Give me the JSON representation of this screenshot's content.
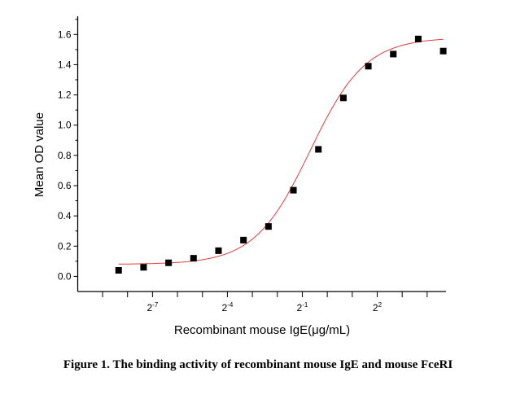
{
  "chart_data": {
    "type": "scatter",
    "xlabel": "Recombinant mouse IgE(μg/mL)",
    "ylabel": "Mean OD value",
    "x_scale": "log2",
    "xlim": [
      0.00098,
      27
    ],
    "ylim": [
      -0.1,
      1.72
    ],
    "x_ticks": [
      {
        "base": "2",
        "exp": "-7",
        "value": 0.0078125
      },
      {
        "base": "2",
        "exp": "-4",
        "value": 0.0625
      },
      {
        "base": "2",
        "exp": "-1",
        "value": 0.5
      },
      {
        "base": "2",
        "exp": "2",
        "value": 4
      }
    ],
    "y_ticks": [
      "0.0",
      "0.2",
      "0.4",
      "0.6",
      "0.8",
      "1.0",
      "1.2",
      "1.4",
      "1.6"
    ],
    "grid": false,
    "series": [
      {
        "type": "scatter",
        "marker": "square",
        "color": "#000000",
        "x": [
          0.00305,
          0.0061,
          0.0122,
          0.0244,
          0.0488,
          0.0977,
          0.1953,
          0.3906,
          0.7813,
          1.5625,
          3.125,
          6.25,
          12.5,
          25
        ],
        "y": [
          0.04,
          0.06,
          0.09,
          0.12,
          0.17,
          0.24,
          0.33,
          0.57,
          0.84,
          1.18,
          1.39,
          1.47,
          1.57,
          1.49
        ]
      },
      {
        "type": "line",
        "fit": "4-parameter logistic",
        "color": "#e03c3c",
        "bottom": 0.08,
        "top": 1.58,
        "ec50": 0.62,
        "hill": 1.3,
        "x_range": [
          0.00305,
          25
        ]
      }
    ]
  },
  "caption": "Figure 1. The binding activity of recombinant mouse IgE and mouse FceRI"
}
